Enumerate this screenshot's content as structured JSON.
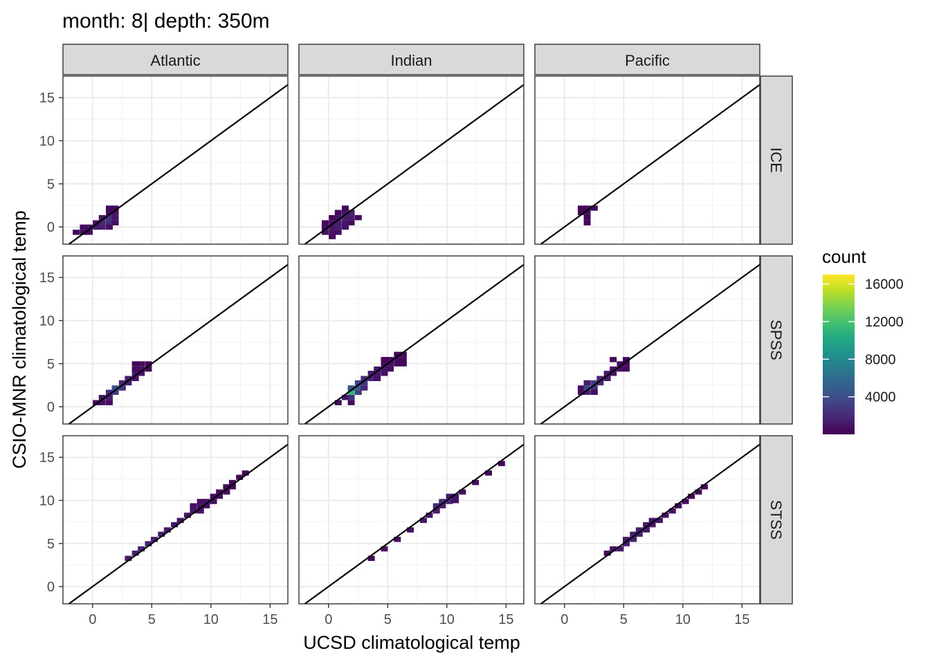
{
  "chart_data": {
    "type": "heatmap",
    "title": "month: 8| depth: 350m",
    "xlabel": "UCSD climatological temp",
    "ylabel": "CSIO-MNR climatological temp",
    "facet_columns": [
      "Atlantic",
      "Indian",
      "Pacific"
    ],
    "facet_rows": [
      "ICE",
      "SPSS",
      "STSS"
    ],
    "xlim": [
      -2.5,
      16.5
    ],
    "ylim": [
      -2,
      17.5
    ],
    "x_ticks": [
      "0",
      "5",
      "10",
      "15"
    ],
    "y_ticks": [
      "0",
      "5",
      "10",
      "15"
    ],
    "bin_width": 0.55,
    "reference_line": "y = x",
    "grid": true,
    "legend": {
      "title": "count",
      "position": "right",
      "ticks": [
        "4000",
        "8000",
        "12000",
        "16000"
      ],
      "min": 0,
      "max": 17000
    },
    "panels": [
      {
        "col": "Atlantic",
        "row": "ICE",
        "cells": [
          [
            -1.4,
            -0.6,
            300
          ],
          [
            -0.8,
            -0.6,
            400
          ],
          [
            -0.8,
            0,
            500
          ],
          [
            -0.3,
            -0.6,
            400
          ],
          [
            -0.3,
            0,
            700
          ],
          [
            0.3,
            0,
            1200
          ],
          [
            0.3,
            0.5,
            800
          ],
          [
            0.8,
            0,
            1500
          ],
          [
            0.8,
            0.5,
            1800
          ],
          [
            0.8,
            1.1,
            900
          ],
          [
            1.4,
            0.5,
            2200
          ],
          [
            1.4,
            1.1,
            2600
          ],
          [
            1.4,
            1.7,
            700
          ],
          [
            1.9,
            0.5,
            600
          ],
          [
            1.9,
            1.1,
            1000
          ],
          [
            1.9,
            1.7,
            800
          ],
          [
            1.9,
            2.2,
            500
          ],
          [
            1.4,
            0,
            700
          ],
          [
            1.4,
            2.2,
            400
          ]
        ]
      },
      {
        "col": "Indian",
        "row": "ICE",
        "cells": [
          [
            -0.3,
            -0.6,
            600
          ],
          [
            -0.3,
            0,
            500
          ],
          [
            -0.3,
            0.5,
            400
          ],
          [
            0.3,
            -1.1,
            300
          ],
          [
            0.3,
            -0.6,
            700
          ],
          [
            0.3,
            0,
            900
          ],
          [
            0.3,
            0.5,
            700
          ],
          [
            0.3,
            1.1,
            300
          ],
          [
            0.8,
            -0.6,
            500
          ],
          [
            0.8,
            0,
            1200
          ],
          [
            0.8,
            0.5,
            1400
          ],
          [
            0.8,
            1.1,
            800
          ],
          [
            0.8,
            1.7,
            300
          ],
          [
            1.4,
            0,
            800
          ],
          [
            1.4,
            0.5,
            1100
          ],
          [
            1.4,
            1.1,
            1500
          ],
          [
            1.4,
            1.7,
            900
          ],
          [
            1.4,
            2.2,
            300
          ],
          [
            1.9,
            0.5,
            600
          ],
          [
            1.9,
            1.1,
            1200
          ],
          [
            1.9,
            1.7,
            1300
          ],
          [
            2.5,
            1.1,
            500
          ]
        ]
      },
      {
        "col": "Pacific",
        "row": "ICE",
        "cells": [
          [
            1.4,
            1.7,
            300
          ],
          [
            1.4,
            2.2,
            300
          ],
          [
            1.9,
            1.7,
            600
          ],
          [
            1.9,
            2.2,
            400
          ],
          [
            1.9,
            1.1,
            300
          ],
          [
            1.9,
            0.5,
            300
          ],
          [
            2.5,
            2.2,
            200
          ]
        ]
      },
      {
        "col": "Atlantic",
        "row": "SPSS",
        "cells": [
          [
            0.3,
            0.5,
            400
          ],
          [
            0.8,
            0.5,
            800
          ],
          [
            0.8,
            1.1,
            900
          ],
          [
            1.4,
            1.1,
            1500
          ],
          [
            1.4,
            1.7,
            2000
          ],
          [
            1.9,
            1.7,
            3000
          ],
          [
            1.9,
            2.2,
            4200
          ],
          [
            2.5,
            2.2,
            2500
          ],
          [
            2.5,
            2.8,
            2000
          ],
          [
            3,
            2.8,
            1500
          ],
          [
            3,
            3.3,
            1200
          ],
          [
            3.6,
            3.3,
            900
          ],
          [
            3.6,
            3.9,
            1200
          ],
          [
            4.1,
            3.9,
            900
          ],
          [
            4.1,
            4.4,
            800
          ],
          [
            4.1,
            5,
            600
          ],
          [
            4.7,
            4.4,
            400
          ],
          [
            3.6,
            4.4,
            500
          ],
          [
            3.6,
            5,
            300
          ],
          [
            4.7,
            5,
            300
          ],
          [
            1.4,
            0.5,
            500
          ]
        ]
      },
      {
        "col": "Indian",
        "row": "SPSS",
        "cells": [
          [
            0.8,
            0.5,
            500
          ],
          [
            1.4,
            1.1,
            900
          ],
          [
            1.9,
            1.1,
            2500
          ],
          [
            1.9,
            1.7,
            11000
          ],
          [
            1.9,
            2.2,
            4500
          ],
          [
            2.5,
            1.7,
            3000
          ],
          [
            2.5,
            2.2,
            5000
          ],
          [
            2.5,
            2.8,
            3500
          ],
          [
            3,
            2.2,
            1800
          ],
          [
            3,
            2.8,
            2600
          ],
          [
            3,
            3.3,
            2200
          ],
          [
            3.6,
            3.3,
            1700
          ],
          [
            3.6,
            3.9,
            1300
          ],
          [
            4.1,
            3.3,
            800
          ],
          [
            4.1,
            3.9,
            1100
          ],
          [
            4.1,
            4.4,
            1000
          ],
          [
            4.7,
            3.9,
            700
          ],
          [
            4.7,
            4.4,
            900
          ],
          [
            4.7,
            5,
            800
          ],
          [
            5.2,
            4.4,
            600
          ],
          [
            5.2,
            5,
            700
          ],
          [
            5.2,
            5.5,
            600
          ],
          [
            5.8,
            5,
            500
          ],
          [
            5.8,
            5.5,
            500
          ],
          [
            5.8,
            6.1,
            400
          ],
          [
            6.3,
            5.5,
            300
          ],
          [
            6.3,
            6.1,
            300
          ],
          [
            6.3,
            5,
            300
          ],
          [
            4.7,
            5.5,
            300
          ],
          [
            1.9,
            0.5,
            600
          ]
        ]
      },
      {
        "col": "Pacific",
        "row": "SPSS",
        "cells": [
          [
            1.4,
            1.7,
            600
          ],
          [
            1.4,
            2.2,
            500
          ],
          [
            1.9,
            1.7,
            1500
          ],
          [
            1.9,
            2.2,
            3500
          ],
          [
            1.9,
            2.8,
            1200
          ],
          [
            2.5,
            2.2,
            2500
          ],
          [
            2.5,
            2.8,
            3200
          ],
          [
            3,
            2.8,
            2000
          ],
          [
            3,
            3.3,
            1800
          ],
          [
            3.6,
            3.3,
            1300
          ],
          [
            3.6,
            3.9,
            1200
          ],
          [
            4.1,
            3.9,
            900
          ],
          [
            4.1,
            4.4,
            800
          ],
          [
            4.7,
            4.4,
            600
          ],
          [
            4.7,
            5,
            500
          ],
          [
            5.2,
            4.4,
            400
          ],
          [
            5.2,
            5,
            400
          ],
          [
            5.2,
            5.5,
            300
          ],
          [
            4.1,
            5.5,
            300
          ],
          [
            2.5,
            1.7,
            500
          ]
        ]
      },
      {
        "col": "Atlantic",
        "row": "STSS",
        "cells": [
          [
            3,
            3.3,
            1200
          ],
          [
            3.6,
            3.9,
            1500
          ],
          [
            4.1,
            4.4,
            1600
          ],
          [
            4.7,
            5,
            1500
          ],
          [
            5.2,
            5.5,
            1400
          ],
          [
            5.8,
            6.1,
            1300
          ],
          [
            6.3,
            6.6,
            1200
          ],
          [
            6.9,
            7.2,
            1100
          ],
          [
            7.4,
            7.7,
            1000
          ],
          [
            8,
            8.3,
            900
          ],
          [
            8.5,
            8.8,
            900
          ],
          [
            9.1,
            9.4,
            800
          ],
          [
            9.6,
            9.9,
            800
          ],
          [
            10.2,
            10.5,
            700
          ],
          [
            10.7,
            11,
            700
          ],
          [
            11.3,
            11.6,
            600
          ],
          [
            11.8,
            12.1,
            500
          ],
          [
            12.4,
            12.7,
            400
          ],
          [
            12.9,
            13.2,
            300
          ],
          [
            9.1,
            8.8,
            700
          ],
          [
            9.6,
            9.4,
            700
          ],
          [
            10.2,
            9.9,
            600
          ],
          [
            10.7,
            10.5,
            600
          ],
          [
            8.5,
            9.4,
            700
          ],
          [
            9.1,
            9.9,
            700
          ],
          [
            11.3,
            11,
            500
          ],
          [
            11.8,
            11.6,
            400
          ]
        ]
      },
      {
        "col": "Indian",
        "row": "STSS",
        "cells": [
          [
            3.6,
            3.3,
            500
          ],
          [
            4.7,
            4.4,
            700
          ],
          [
            5.8,
            5.5,
            800
          ],
          [
            6.9,
            6.6,
            900
          ],
          [
            8,
            7.7,
            1000
          ],
          [
            9.1,
            9.4,
            2000
          ],
          [
            9.6,
            9.9,
            2200
          ],
          [
            9.6,
            9.4,
            1500
          ],
          [
            10.2,
            9.9,
            1800
          ],
          [
            10.2,
            10.5,
            1200
          ],
          [
            10.7,
            10.5,
            1000
          ],
          [
            11.3,
            11,
            800
          ],
          [
            12.4,
            12.1,
            600
          ],
          [
            13.5,
            13.2,
            500
          ],
          [
            14.6,
            14.3,
            400
          ],
          [
            8.5,
            8.3,
            1200
          ],
          [
            9.1,
            8.8,
            1300
          ],
          [
            10.7,
            10,
            900
          ]
        ]
      },
      {
        "col": "Pacific",
        "row": "STSS",
        "cells": [
          [
            3.6,
            3.9,
            500
          ],
          [
            4.1,
            4.4,
            900
          ],
          [
            4.7,
            4.4,
            1200
          ],
          [
            5.2,
            5,
            1400
          ],
          [
            5.2,
            5.5,
            1300
          ],
          [
            5.8,
            5.5,
            1500
          ],
          [
            5.8,
            6.1,
            1400
          ],
          [
            6.3,
            6.1,
            1600
          ],
          [
            6.3,
            6.6,
            1500
          ],
          [
            6.9,
            6.6,
            1300
          ],
          [
            6.9,
            7.2,
            1200
          ],
          [
            7.4,
            7.2,
            1100
          ],
          [
            7.4,
            7.7,
            1000
          ],
          [
            8,
            7.7,
            900
          ],
          [
            8.5,
            8.3,
            800
          ],
          [
            9.1,
            8.8,
            700
          ],
          [
            9.6,
            9.4,
            600
          ],
          [
            10.2,
            9.9,
            500
          ],
          [
            10.7,
            10.5,
            400
          ],
          [
            11.3,
            11,
            400
          ],
          [
            11.8,
            11.6,
            300
          ]
        ]
      }
    ]
  }
}
